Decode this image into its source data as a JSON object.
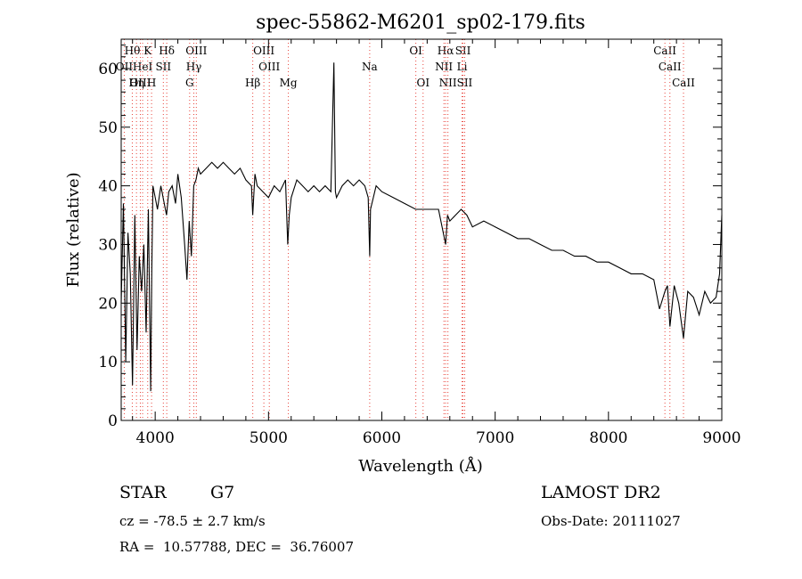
{
  "chart_data": {
    "type": "line",
    "title": "spec-55862-M6201_sp02-179.fits",
    "xlabel": "Wavelength (Å)",
    "ylabel": "Flux (relative)",
    "xlim": [
      3700,
      9000
    ],
    "ylim": [
      0,
      65
    ],
    "xticks": [
      4000,
      5000,
      6000,
      7000,
      8000,
      9000
    ],
    "yticks": [
      0,
      10,
      20,
      30,
      40,
      50,
      60
    ],
    "grid": false,
    "line_color": "#000000",
    "marker_line_color": "#e8453c",
    "series": [
      {
        "x": [
          3700,
          3720,
          3740,
          3760,
          3780,
          3800,
          3820,
          3840,
          3860,
          3880,
          3900,
          3920,
          3940,
          3960,
          3970,
          3980,
          4000,
          4020,
          4050,
          4080,
          4100,
          4120,
          4150,
          4180,
          4200,
          4230,
          4260,
          4280,
          4300,
          4320,
          4340,
          4360,
          4380,
          4400,
          4450,
          4500,
          4550,
          4600,
          4650,
          4700,
          4750,
          4800,
          4850,
          4861,
          4880,
          4900,
          4950,
          5000,
          5050,
          5100,
          5150,
          5170,
          5183,
          5200,
          5250,
          5300,
          5350,
          5400,
          5450,
          5500,
          5550,
          5577,
          5590,
          5600,
          5650,
          5700,
          5750,
          5800,
          5850,
          5880,
          5893,
          5900,
          5950,
          6000,
          6100,
          6200,
          6300,
          6400,
          6500,
          6563,
          6580,
          6600,
          6650,
          6700,
          6750,
          6800,
          6900,
          7000,
          7100,
          7200,
          7300,
          7400,
          7500,
          7600,
          7700,
          7800,
          7900,
          8000,
          8100,
          8200,
          8300,
          8400,
          8450,
          8498,
          8520,
          8542,
          8580,
          8620,
          8662,
          8700,
          8750,
          8800,
          8850,
          8900,
          8950,
          8980,
          9000
        ],
        "y": [
          20,
          37,
          10,
          32,
          25,
          6,
          35,
          12,
          28,
          22,
          30,
          15,
          36,
          5,
          25,
          40,
          38,
          36,
          40,
          37,
          35,
          39,
          40,
          37,
          42,
          38,
          30,
          24,
          34,
          28,
          40,
          41,
          43,
          42,
          43,
          44,
          43,
          44,
          43,
          42,
          43,
          41,
          40,
          35,
          42,
          40,
          39,
          38,
          40,
          39,
          41,
          30,
          35,
          38,
          41,
          40,
          39,
          40,
          39,
          40,
          39,
          61,
          39,
          38,
          40,
          41,
          40,
          41,
          40,
          38,
          28,
          36,
          40,
          39,
          38,
          37,
          36,
          36,
          36,
          30,
          35,
          34,
          35,
          36,
          35,
          33,
          34,
          33,
          32,
          31,
          31,
          30,
          29,
          29,
          28,
          28,
          27,
          27,
          26,
          25,
          25,
          24,
          19,
          22,
          23,
          16,
          23,
          20,
          14,
          22,
          21,
          18,
          22,
          20,
          21,
          25,
          35
        ]
      }
    ],
    "line_markers": [
      {
        "label": "Hθ",
        "wavelength": 3798,
        "row": 1
      },
      {
        "label": "K",
        "wavelength": 3934,
        "row": 1
      },
      {
        "label": "Hδ",
        "wavelength": 4102,
        "row": 1
      },
      {
        "label": "OIII",
        "wavelength": 4363,
        "row": 1
      },
      {
        "label": "OIII",
        "wavelength": 4959,
        "row": 1
      },
      {
        "label": "OI",
        "wavelength": 6300,
        "row": 1
      },
      {
        "label": "Hα",
        "wavelength": 6563,
        "row": 1
      },
      {
        "label": "SII",
        "wavelength": 6716,
        "row": 1
      },
      {
        "label": "CaII",
        "wavelength": 8498,
        "row": 1
      },
      {
        "label": "OII",
        "wavelength": 3727,
        "row": 2
      },
      {
        "label": "HeI",
        "wavelength": 3889,
        "row": 2
      },
      {
        "label": "SII",
        "wavelength": 4072,
        "row": 2
      },
      {
        "label": "Hγ",
        "wavelength": 4341,
        "row": 2
      },
      {
        "label": "OIII",
        "wavelength": 5007,
        "row": 2
      },
      {
        "label": "Na",
        "wavelength": 5893,
        "row": 2
      },
      {
        "label": "NII",
        "wavelength": 6548,
        "row": 2
      },
      {
        "label": "Li",
        "wavelength": 6708,
        "row": 2
      },
      {
        "label": "CaII",
        "wavelength": 8542,
        "row": 2
      },
      {
        "label": "OIII",
        "wavelength": 3869,
        "row": 3
      },
      {
        "label": "Hη",
        "wavelength": 3835,
        "row": 3
      },
      {
        "label": "H",
        "wavelength": 3968,
        "row": 3
      },
      {
        "label": "G",
        "wavelength": 4304,
        "row": 3
      },
      {
        "label": "Hβ",
        "wavelength": 4861,
        "row": 3
      },
      {
        "label": "Mg",
        "wavelength": 5175,
        "row": 3
      },
      {
        "label": "OI",
        "wavelength": 6364,
        "row": 3
      },
      {
        "label": "NII",
        "wavelength": 6583,
        "row": 3
      },
      {
        "label": "SII",
        "wavelength": 6731,
        "row": 3
      },
      {
        "label": "CaII",
        "wavelength": 8662,
        "row": 3
      }
    ]
  },
  "footer": {
    "class_label": "STAR",
    "subclass": "G7",
    "survey": "LAMOST DR2",
    "cz": "cz = -78.5 ± 2.7 km/s",
    "obs_date": "Obs-Date: 20111027",
    "coords": "RA =  10.57788, DEC =  36.76007"
  }
}
